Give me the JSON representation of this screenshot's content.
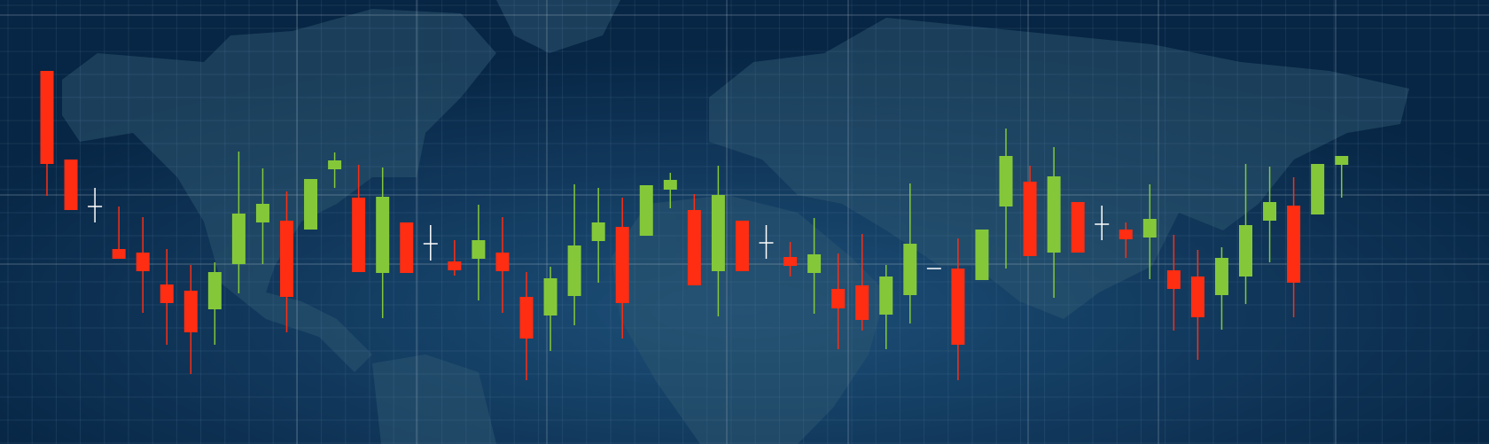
{
  "chart_data": {
    "type": "candlestick",
    "title": "",
    "xlabel": "",
    "ylabel": "",
    "ylim": [
      0,
      500
    ],
    "grid": true,
    "colors": {
      "up": "#84c83a",
      "down": "#ff2d12",
      "doji": "#ffffff",
      "background": "#0a2a4a",
      "map": "#2a4f6a"
    },
    "candles": [
      [
        421,
        421,
        280,
        316
      ],
      [
        321,
        321,
        264,
        264
      ],
      [
        268,
        289,
        250,
        268
      ],
      [
        220,
        268,
        209,
        209
      ],
      [
        216,
        256,
        148,
        195
      ],
      [
        180,
        220,
        112,
        159
      ],
      [
        173,
        202,
        79,
        126
      ],
      [
        152,
        205,
        112,
        194
      ],
      [
        203,
        330,
        170,
        260
      ],
      [
        250,
        311,
        203,
        271
      ],
      [
        252,
        285,
        126,
        166
      ],
      [
        242,
        299,
        242,
        299
      ],
      [
        310,
        329,
        289,
        320
      ],
      [
        278,
        315,
        194,
        194
      ],
      [
        193,
        312,
        142,
        279
      ],
      [
        250,
        250,
        193,
        193
      ],
      [
        226,
        247,
        207,
        226
      ],
      [
        206,
        230,
        190,
        196
      ],
      [
        209,
        270,
        162,
        230
      ],
      [
        216,
        256,
        148,
        195
      ],
      [
        166,
        194,
        72,
        119
      ],
      [
        145,
        200,
        105,
        187
      ],
      [
        167,
        293,
        134,
        224
      ],
      [
        229,
        289,
        182,
        250
      ],
      [
        245,
        278,
        119,
        159
      ],
      [
        235,
        292,
        235,
        292
      ],
      [
        287,
        306,
        266,
        298
      ],
      [
        264,
        282,
        179,
        179
      ],
      [
        195,
        314,
        144,
        281
      ],
      [
        252,
        252,
        195,
        195
      ],
      [
        227,
        247,
        209,
        227
      ],
      [
        211,
        228,
        189,
        201
      ],
      [
        193,
        255,
        147,
        214
      ],
      [
        175,
        215,
        107,
        153
      ],
      [
        179,
        237,
        128,
        140
      ],
      [
        146,
        202,
        107,
        189
      ],
      [
        168,
        294,
        136,
        226
      ],
      [
        198,
        198,
        198,
        198
      ],
      [
        198,
        232,
        72,
        112
      ],
      [
        185,
        242,
        185,
        242
      ],
      [
        268,
        356,
        198,
        325
      ],
      [
        296,
        314,
        212,
        212
      ],
      [
        216,
        335,
        165,
        302
      ],
      [
        273,
        273,
        216,
        216
      ],
      [
        248,
        269,
        230,
        248
      ],
      [
        242,
        250,
        210,
        231
      ],
      [
        233,
        293,
        186,
        254
      ],
      [
        196,
        236,
        128,
        175
      ],
      [
        189,
        219,
        95,
        143
      ],
      [
        168,
        222,
        129,
        210
      ],
      [
        189,
        316,
        158,
        247
      ],
      [
        252,
        313,
        205,
        273
      ],
      [
        269,
        301,
        143,
        182
      ],
      [
        259,
        316,
        259,
        316
      ],
      [
        315,
        325,
        278,
        325
      ]
    ],
    "candle_fields": [
      "open",
      "high",
      "low",
      "close"
    ]
  }
}
